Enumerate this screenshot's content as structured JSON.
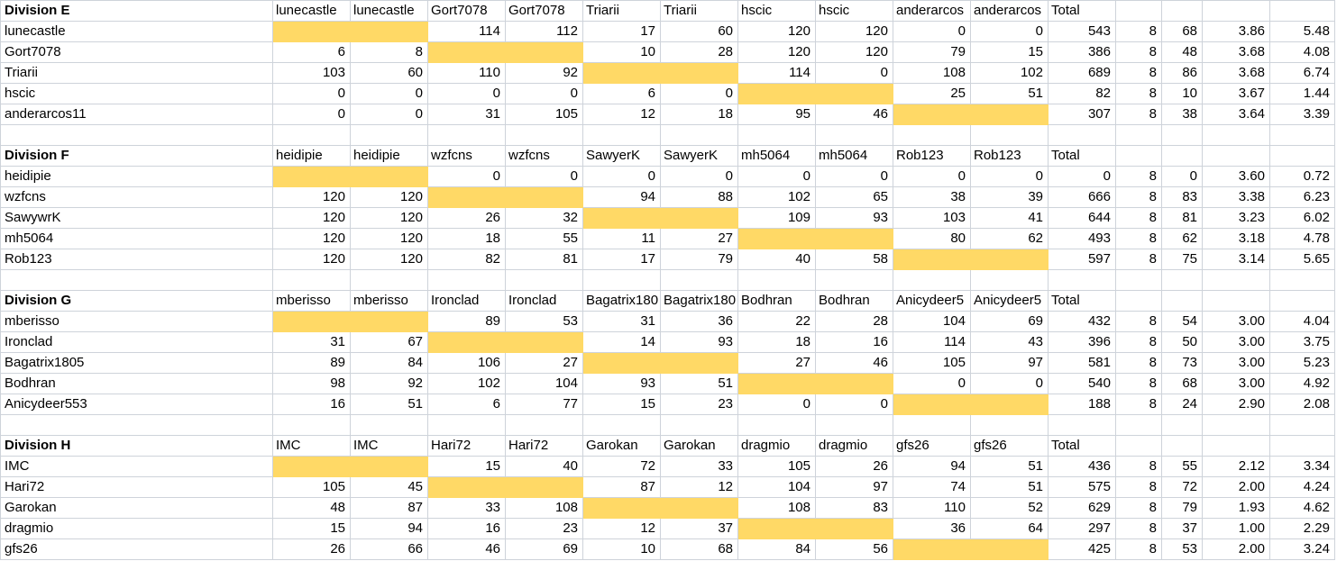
{
  "style": {
    "highlight_color": "#ffd966",
    "gridline_color": "#ced3da",
    "background_color": "#ffffff",
    "text_color": "#000000"
  },
  "divisions": [
    {
      "label": "Division E",
      "total_label": "Total",
      "headers": [
        "lunecastle",
        "lunecastle",
        "Gort7078",
        "Gort7078",
        "Triarii",
        "Triarii",
        "hscic",
        "hscic",
        "anderarcos",
        "anderarcos"
      ],
      "teams": [
        {
          "name": "lunecastle",
          "cells": [
            null,
            null,
            114,
            112,
            17,
            60,
            120,
            120,
            0,
            0
          ],
          "total": 543,
          "played": 8,
          "points": 68,
          "avg_a": "3.86",
          "avg_b": "5.48"
        },
        {
          "name": "Gort7078",
          "cells": [
            6,
            8,
            null,
            null,
            10,
            28,
            120,
            120,
            79,
            15
          ],
          "total": 386,
          "played": 8,
          "points": 48,
          "avg_a": "3.68",
          "avg_b": "4.08"
        },
        {
          "name": "Triarii",
          "cells": [
            103,
            60,
            110,
            92,
            null,
            null,
            114,
            0,
            108,
            102
          ],
          "total": 689,
          "played": 8,
          "points": 86,
          "avg_a": "3.68",
          "avg_b": "6.74"
        },
        {
          "name": "hscic",
          "cells": [
            0,
            0,
            0,
            0,
            6,
            0,
            null,
            null,
            25,
            51
          ],
          "total": 82,
          "played": 8,
          "points": 10,
          "avg_a": "3.67",
          "avg_b": "1.44"
        },
        {
          "name": "anderarcos11",
          "cells": [
            0,
            0,
            31,
            105,
            12,
            18,
            95,
            46,
            null,
            null
          ],
          "total": 307,
          "played": 8,
          "points": 38,
          "avg_a": "3.64",
          "avg_b": "3.39"
        }
      ]
    },
    {
      "label": "Division F",
      "total_label": "Total",
      "headers": [
        "heidipie",
        "heidipie",
        "wzfcns",
        "wzfcns",
        "SawyerK",
        "SawyerK",
        "mh5064",
        "mh5064",
        "Rob123",
        "Rob123"
      ],
      "teams": [
        {
          "name": "heidipie",
          "cells": [
            null,
            null,
            0,
            0,
            0,
            0,
            0,
            0,
            0,
            0
          ],
          "total": 0,
          "played": 8,
          "points": 0,
          "avg_a": "3.60",
          "avg_b": "0.72"
        },
        {
          "name": "wzfcns",
          "cells": [
            120,
            120,
            null,
            null,
            94,
            88,
            102,
            65,
            38,
            39
          ],
          "total": 666,
          "played": 8,
          "points": 83,
          "avg_a": "3.38",
          "avg_b": "6.23"
        },
        {
          "name": "SawywrK",
          "cells": [
            120,
            120,
            26,
            32,
            null,
            null,
            109,
            93,
            103,
            41
          ],
          "total": 644,
          "played": 8,
          "points": 81,
          "avg_a": "3.23",
          "avg_b": "6.02"
        },
        {
          "name": "mh5064",
          "cells": [
            120,
            120,
            18,
            55,
            11,
            27,
            null,
            null,
            80,
            62
          ],
          "total": 493,
          "played": 8,
          "points": 62,
          "avg_a": "3.18",
          "avg_b": "4.78"
        },
        {
          "name": "Rob123",
          "cells": [
            120,
            120,
            82,
            81,
            17,
            79,
            40,
            58,
            null,
            null
          ],
          "total": 597,
          "played": 8,
          "points": 75,
          "avg_a": "3.14",
          "avg_b": "5.65"
        }
      ]
    },
    {
      "label": "Division G",
      "total_label": "Total",
      "headers": [
        "mberisso",
        "mberisso",
        "Ironclad",
        "Ironclad",
        "Bagatrix180",
        "Bagatrix180",
        "Bodhran",
        "Bodhran",
        "Anicydeer5",
        "Anicydeer5"
      ],
      "teams": [
        {
          "name": "mberisso",
          "cells": [
            null,
            null,
            89,
            53,
            31,
            36,
            22,
            28,
            104,
            69
          ],
          "total": 432,
          "played": 8,
          "points": 54,
          "avg_a": "3.00",
          "avg_b": "4.04"
        },
        {
          "name": "Ironclad",
          "cells": [
            31,
            67,
            null,
            null,
            14,
            93,
            18,
            16,
            114,
            43
          ],
          "total": 396,
          "played": 8,
          "points": 50,
          "avg_a": "3.00",
          "avg_b": "3.75"
        },
        {
          "name": "Bagatrix1805",
          "cells": [
            89,
            84,
            106,
            27,
            null,
            null,
            27,
            46,
            105,
            97
          ],
          "total": 581,
          "played": 8,
          "points": 73,
          "avg_a": "3.00",
          "avg_b": "5.23"
        },
        {
          "name": "Bodhran",
          "cells": [
            98,
            92,
            102,
            104,
            93,
            51,
            null,
            null,
            0,
            0
          ],
          "total": 540,
          "played": 8,
          "points": 68,
          "avg_a": "3.00",
          "avg_b": "4.92"
        },
        {
          "name": "Anicydeer553",
          "cells": [
            16,
            51,
            6,
            77,
            15,
            23,
            0,
            0,
            null,
            null
          ],
          "total": 188,
          "played": 8,
          "points": 24,
          "avg_a": "2.90",
          "avg_b": "2.08"
        }
      ]
    },
    {
      "label": "Division H",
      "total_label": "Total",
      "headers": [
        "IMC",
        "IMC",
        "Hari72",
        "Hari72",
        "Garokan",
        "Garokan",
        "dragmio",
        "dragmio",
        "gfs26",
        "gfs26"
      ],
      "teams": [
        {
          "name": "IMC",
          "cells": [
            null,
            null,
            15,
            40,
            72,
            33,
            105,
            26,
            94,
            51
          ],
          "total": 436,
          "played": 8,
          "points": 55,
          "avg_a": "2.12",
          "avg_b": "3.34"
        },
        {
          "name": "Hari72",
          "cells": [
            105,
            45,
            null,
            null,
            87,
            12,
            104,
            97,
            74,
            51
          ],
          "total": 575,
          "played": 8,
          "points": 72,
          "avg_a": "2.00",
          "avg_b": "4.24"
        },
        {
          "name": "Garokan",
          "cells": [
            48,
            87,
            33,
            108,
            null,
            null,
            108,
            83,
            110,
            52
          ],
          "total": 629,
          "played": 8,
          "points": 79,
          "avg_a": "1.93",
          "avg_b": "4.62"
        },
        {
          "name": "dragmio",
          "cells": [
            15,
            94,
            16,
            23,
            12,
            37,
            null,
            null,
            36,
            64
          ],
          "total": 297,
          "played": 8,
          "points": 37,
          "avg_a": "1.00",
          "avg_b": "2.29"
        },
        {
          "name": "gfs26",
          "cells": [
            26,
            66,
            46,
            69,
            10,
            68,
            84,
            56,
            null,
            null
          ],
          "total": 425,
          "played": 8,
          "points": 53,
          "avg_a": "2.00",
          "avg_b": "3.24"
        }
      ]
    }
  ]
}
